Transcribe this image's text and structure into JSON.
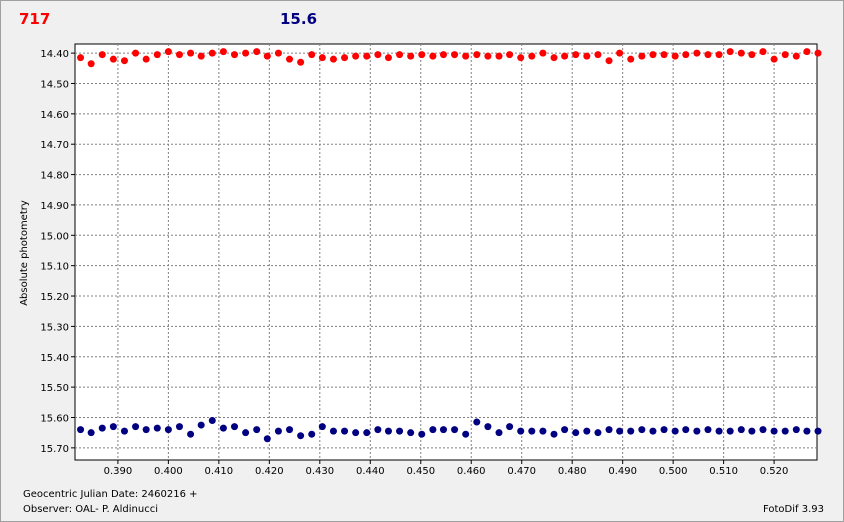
{
  "header": {
    "left_value": "717",
    "right_value": "15.6"
  },
  "footer": {
    "date_label": "Geocentric Julian Date: 2460216 +",
    "observer": "Observer: OAL- P. Aldinucci",
    "software": "FotoDif 3.93"
  },
  "chart_data": {
    "type": "scatter",
    "title": "",
    "xlabel": "",
    "ylabel": "Absolute photometry",
    "xlim": [
      0.3815,
      0.5285
    ],
    "ylim": [
      14.37,
      15.74
    ],
    "y_inverted": true,
    "grid": true,
    "x_ticks": [
      "0.390",
      "0.400",
      "0.410",
      "0.420",
      "0.430",
      "0.440",
      "0.450",
      "0.460",
      "0.470",
      "0.480",
      "0.490",
      "0.500",
      "0.510",
      "0.520"
    ],
    "y_ticks": [
      "14.40",
      "14.50",
      "14.60",
      "14.70",
      "14.80",
      "14.90",
      "15.00",
      "15.10",
      "15.20",
      "15.30",
      "15.40",
      "15.50",
      "15.60",
      "15.70"
    ],
    "series": [
      {
        "color": "#ff0000",
        "x": [
          0.3826,
          0.3847,
          0.3869,
          0.3891,
          0.3913,
          0.3935,
          0.3956,
          0.3978,
          0.4,
          0.4022,
          0.4044,
          0.4065,
          0.4087,
          0.4109,
          0.4131,
          0.4153,
          0.4175,
          0.4196,
          0.4218,
          0.424,
          0.4262,
          0.4284,
          0.4305,
          0.4327,
          0.4349,
          0.4371,
          0.4393,
          0.4415,
          0.4436,
          0.4458,
          0.448,
          0.4502,
          0.4524,
          0.4545,
          0.4567,
          0.4589,
          0.4611,
          0.4633,
          0.4655,
          0.4676,
          0.4698,
          0.472,
          0.4742,
          0.4764,
          0.4785,
          0.4807,
          0.4829,
          0.4851,
          0.4873,
          0.4894,
          0.4916,
          0.4938,
          0.496,
          0.4982,
          0.5004,
          0.5025,
          0.5047,
          0.5069,
          0.5091,
          0.5113,
          0.5135,
          0.5156,
          0.5178,
          0.52,
          0.5222,
          0.5244,
          0.5265,
          0.5287
        ],
        "y": [
          14.415,
          14.435,
          14.405,
          14.42,
          14.425,
          14.4,
          14.42,
          14.405,
          14.395,
          14.405,
          14.4,
          14.41,
          14.4,
          14.395,
          14.405,
          14.4,
          14.395,
          14.41,
          14.4,
          14.42,
          14.43,
          14.405,
          14.415,
          14.42,
          14.415,
          14.41,
          14.41,
          14.405,
          14.415,
          14.405,
          14.41,
          14.405,
          14.41,
          14.405,
          14.405,
          14.41,
          14.405,
          14.41,
          14.41,
          14.405,
          14.415,
          14.41,
          14.4,
          14.415,
          14.41,
          14.405,
          14.41,
          14.405,
          14.425,
          14.4,
          14.42,
          14.41,
          14.405,
          14.405,
          14.41,
          14.405,
          14.4,
          14.405,
          14.405,
          14.395,
          14.4,
          14.405,
          14.395,
          14.42,
          14.405,
          14.41,
          14.395,
          14.4
        ]
      },
      {
        "color": "#000080",
        "x": [
          0.3826,
          0.3847,
          0.3869,
          0.3891,
          0.3913,
          0.3935,
          0.3956,
          0.3978,
          0.4,
          0.4022,
          0.4044,
          0.4065,
          0.4087,
          0.4109,
          0.4131,
          0.4153,
          0.4175,
          0.4196,
          0.4218,
          0.424,
          0.4262,
          0.4284,
          0.4305,
          0.4327,
          0.4349,
          0.4371,
          0.4393,
          0.4415,
          0.4436,
          0.4458,
          0.448,
          0.4502,
          0.4524,
          0.4545,
          0.4567,
          0.4589,
          0.4611,
          0.4633,
          0.4655,
          0.4676,
          0.4698,
          0.472,
          0.4742,
          0.4764,
          0.4785,
          0.4807,
          0.4829,
          0.4851,
          0.4873,
          0.4894,
          0.4916,
          0.4938,
          0.496,
          0.4982,
          0.5004,
          0.5025,
          0.5047,
          0.5069,
          0.5091,
          0.5113,
          0.5135,
          0.5156,
          0.5178,
          0.52,
          0.5222,
          0.5244,
          0.5265,
          0.5287
        ],
        "y": [
          15.64,
          15.65,
          15.635,
          15.63,
          15.645,
          15.63,
          15.64,
          15.635,
          15.64,
          15.63,
          15.655,
          15.625,
          15.61,
          15.635,
          15.63,
          15.65,
          15.64,
          15.67,
          15.645,
          15.64,
          15.66,
          15.655,
          15.63,
          15.645,
          15.645,
          15.65,
          15.65,
          15.64,
          15.645,
          15.645,
          15.65,
          15.655,
          15.64,
          15.64,
          15.64,
          15.655,
          15.615,
          15.63,
          15.65,
          15.63,
          15.645,
          15.645,
          15.645,
          15.655,
          15.64,
          15.65,
          15.645,
          15.65,
          15.64,
          15.645,
          15.645,
          15.64,
          15.645,
          15.64,
          15.645,
          15.64,
          15.645,
          15.64,
          15.645,
          15.645,
          15.64,
          15.645,
          15.64,
          15.645,
          15.645,
          15.64,
          15.645,
          15.645
        ]
      }
    ]
  }
}
